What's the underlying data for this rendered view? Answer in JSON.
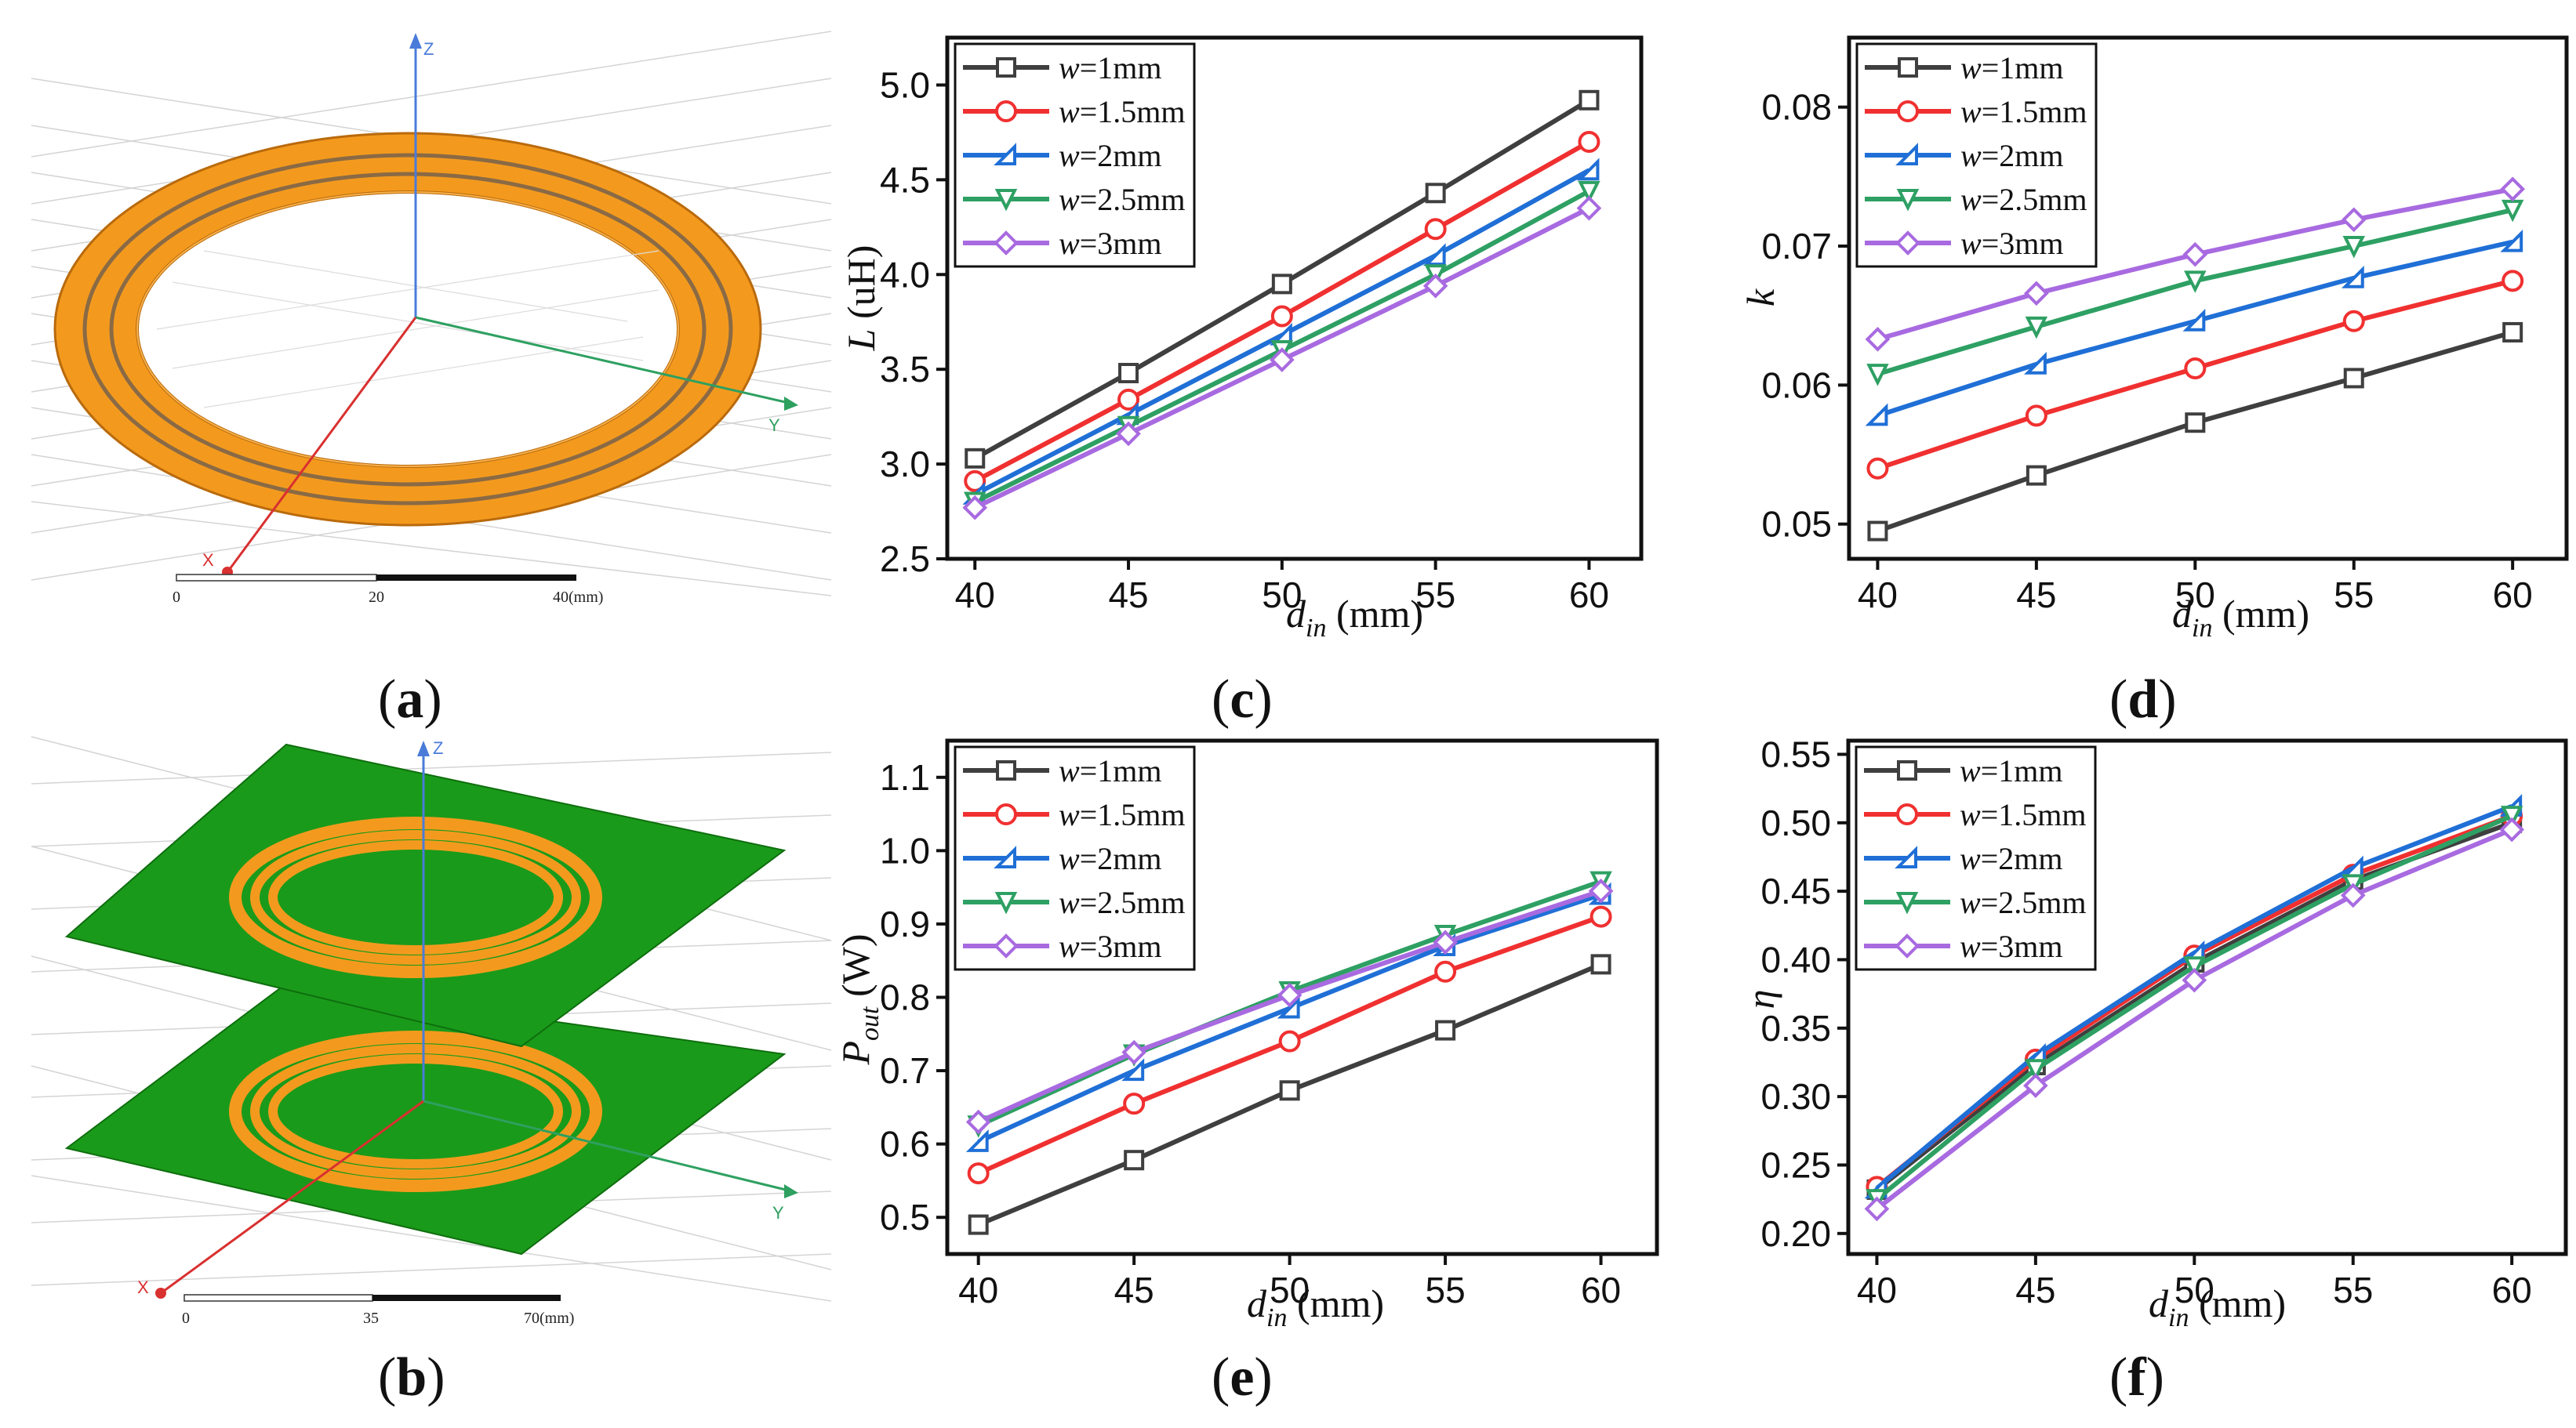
{
  "figure": {
    "panels": {
      "a": {
        "caption": "a",
        "ruler": [
          "0",
          "20",
          "40(mm)"
        ],
        "axes": [
          "Z",
          "Y",
          "X"
        ]
      },
      "b": {
        "caption": "b",
        "ruler": [
          "0",
          "35",
          "70(mm)"
        ],
        "axes": [
          "Z",
          "Y",
          "X"
        ]
      }
    },
    "legend_prefix": "w",
    "colors": {
      "w=1mm": "#3f3f3f",
      "w=1.5mm": "#f03030",
      "w=2mm": "#1f6fd6",
      "w=2.5mm": "#2ea063",
      "w=3mm": "#a86ae0",
      "coil_orange": "#f39a1e",
      "plate_green": "#1a9a1a"
    }
  },
  "chart_data": [
    {
      "panel": "c",
      "caption": "c",
      "type": "line",
      "ylabel_main": "L",
      "ylabel_rest": " (uH)",
      "xlabel_main": "d",
      "xlabel_sub": "in",
      "xlabel_rest": " (mm)",
      "x": [
        40,
        45,
        50,
        55,
        60
      ],
      "xticks": [
        "40",
        "45",
        "50",
        "55",
        "60"
      ],
      "ylim": [
        2.5,
        5.25
      ],
      "yticks": [
        2.5,
        3.0,
        3.5,
        4.0,
        4.5,
        5.0
      ],
      "ytick_labels": [
        "2.5",
        "3.0",
        "3.5",
        "4.0",
        "4.5",
        "5.0"
      ],
      "legend": "top-left",
      "series": [
        {
          "name": "=1mm",
          "marker": "square",
          "values": [
            3.03,
            3.48,
            3.95,
            4.43,
            4.92
          ]
        },
        {
          "name": "=1.5mm",
          "marker": "circle",
          "values": [
            2.91,
            3.34,
            3.78,
            4.24,
            4.7
          ]
        },
        {
          "name": "=2mm",
          "marker": "tri-left",
          "values": [
            2.84,
            3.26,
            3.68,
            4.1,
            4.55
          ]
        },
        {
          "name": "=2.5mm",
          "marker": "tri-down",
          "values": [
            2.8,
            3.2,
            3.6,
            4.0,
            4.44
          ]
        },
        {
          "name": "=3mm",
          "marker": "diamond",
          "values": [
            2.77,
            3.16,
            3.55,
            3.94,
            4.35
          ]
        }
      ]
    },
    {
      "panel": "d",
      "caption": "d",
      "type": "line",
      "ylabel_main": "k",
      "ylabel_rest": "",
      "xlabel_main": "d",
      "xlabel_sub": "in",
      "xlabel_rest": " (mm)",
      "x": [
        40,
        45,
        50,
        55,
        60
      ],
      "xticks": [
        "40",
        "45",
        "50",
        "55",
        "60"
      ],
      "ylim": [
        0.0475,
        0.085
      ],
      "yticks": [
        0.05,
        0.06,
        0.07,
        0.08
      ],
      "ytick_labels": [
        "0.05",
        "0.06",
        "0.07",
        "0.08"
      ],
      "legend": "top-left",
      "series": [
        {
          "name": "=1mm",
          "marker": "square",
          "values": [
            0.0495,
            0.0535,
            0.0573,
            0.0605,
            0.0638
          ]
        },
        {
          "name": "=1.5mm",
          "marker": "circle",
          "values": [
            0.054,
            0.0578,
            0.0612,
            0.0646,
            0.0675
          ]
        },
        {
          "name": "=2mm",
          "marker": "tri-left",
          "values": [
            0.0578,
            0.0615,
            0.0646,
            0.0677,
            0.0703
          ]
        },
        {
          "name": "=2.5mm",
          "marker": "tri-down",
          "values": [
            0.0608,
            0.0642,
            0.0675,
            0.07,
            0.0726
          ]
        },
        {
          "name": "=3mm",
          "marker": "diamond",
          "values": [
            0.0633,
            0.0666,
            0.0694,
            0.0719,
            0.0741
          ]
        }
      ]
    },
    {
      "panel": "e",
      "caption": "e",
      "type": "line",
      "ylabel_main": "P",
      "ylabel_sub": "out",
      "ylabel_rest": " (W)",
      "xlabel_main": "d",
      "xlabel_sub": "in",
      "xlabel_rest": " (mm)",
      "x": [
        40,
        45,
        50,
        55,
        60
      ],
      "xticks": [
        "40",
        "45",
        "50",
        "55",
        "60"
      ],
      "ylim": [
        0.45,
        1.15
      ],
      "yticks": [
        0.5,
        0.6,
        0.7,
        0.8,
        0.9,
        1.0,
        1.1
      ],
      "ytick_labels": [
        "0.5",
        "0.6",
        "0.7",
        "0.8",
        "0.9",
        "1.0",
        "1.1"
      ],
      "legend": "top-left",
      "series": [
        {
          "name": "=1mm",
          "marker": "square",
          "values": [
            0.49,
            0.578,
            0.673,
            0.755,
            0.845
          ]
        },
        {
          "name": "=1.5mm",
          "marker": "circle",
          "values": [
            0.56,
            0.655,
            0.74,
            0.835,
            0.91
          ]
        },
        {
          "name": "=2mm",
          "marker": "tri-left",
          "values": [
            0.603,
            0.7,
            0.785,
            0.87,
            0.94
          ]
        },
        {
          "name": "=2.5mm",
          "marker": "tri-down",
          "values": [
            0.625,
            0.722,
            0.808,
            0.885,
            0.958
          ]
        },
        {
          "name": "=3mm",
          "marker": "diamond",
          "values": [
            0.63,
            0.725,
            0.803,
            0.875,
            0.945
          ]
        }
      ]
    },
    {
      "panel": "f",
      "caption": "f",
      "type": "line",
      "ylabel_main": "η",
      "ylabel_rest": "",
      "xlabel_main": "d",
      "xlabel_sub": "in",
      "xlabel_rest": " (mm)",
      "x": [
        40,
        45,
        50,
        55,
        60
      ],
      "xticks": [
        "40",
        "45",
        "50",
        "55",
        "60"
      ],
      "ylim": [
        0.185,
        0.56
      ],
      "yticks": [
        0.2,
        0.25,
        0.3,
        0.35,
        0.4,
        0.45,
        0.5,
        0.55
      ],
      "ytick_labels": [
        "0.20",
        "0.25",
        "0.30",
        "0.35",
        "0.40",
        "0.45",
        "0.50",
        "0.55"
      ],
      "legend": "top-left",
      "series": [
        {
          "name": "=1mm",
          "marker": "square",
          "values": [
            0.232,
            0.323,
            0.398,
            0.458,
            0.5
          ]
        },
        {
          "name": "=1.5mm",
          "marker": "circle",
          "values": [
            0.234,
            0.327,
            0.403,
            0.462,
            0.505
          ]
        },
        {
          "name": "=2mm",
          "marker": "tri-left",
          "values": [
            0.233,
            0.33,
            0.405,
            0.467,
            0.512
          ]
        },
        {
          "name": "=2.5mm",
          "marker": "tri-down",
          "values": [
            0.225,
            0.32,
            0.395,
            0.455,
            0.505
          ]
        },
        {
          "name": "=3mm",
          "marker": "diamond",
          "values": [
            0.218,
            0.308,
            0.385,
            0.447,
            0.495
          ]
        }
      ]
    }
  ]
}
